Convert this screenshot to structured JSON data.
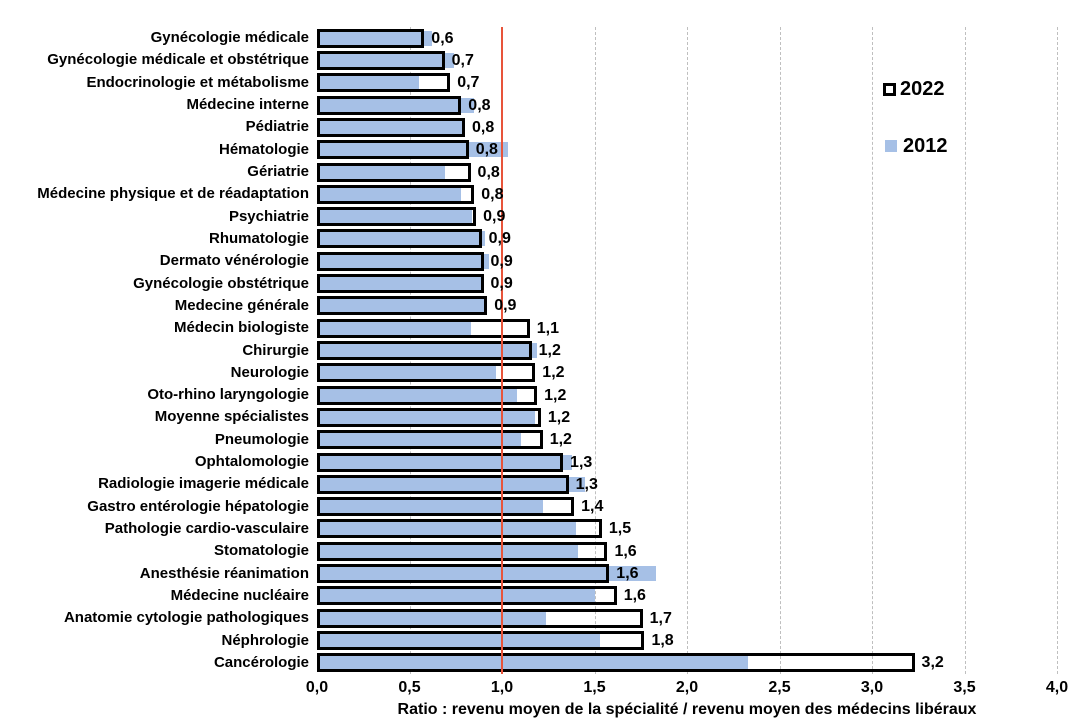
{
  "chart_data": {
    "type": "bar",
    "orientation": "horizontal",
    "title": "",
    "xlabel": "Ratio : revenu moyen de la spécialité / revenu moyen des médecins libéraux",
    "ylabel": "",
    "xlim": [
      0.0,
      4.0
    ],
    "xtick_labels": [
      "0,0",
      "0,5",
      "1,0",
      "1,5",
      "2,0",
      "2,5",
      "3,0",
      "3,5",
      "4,0"
    ],
    "xtick_values": [
      0,
      0.5,
      1.0,
      1.5,
      2.0,
      2.5,
      3.0,
      3.5,
      4.0
    ],
    "grid": "vertical-dashed",
    "legend_position": "right-top",
    "reference_line": {
      "value": 1.0,
      "color": "#e8543a"
    },
    "colors": {
      "bar_2012": "#a6c0e6",
      "bar_2022_fill": "#ffffff",
      "bar_2022_border": "#000000",
      "gridline": "#bfbfbf",
      "text": "#000000"
    },
    "legend": [
      {
        "name": "2022",
        "swatch": "white-square-black-outline"
      },
      {
        "name": "2012",
        "swatch": "light-blue-square"
      }
    ],
    "categories": [
      "Gynécologie médicale",
      "Gynécologie médicale et obstétrique",
      "Endocrinologie et métabolisme",
      "Médecine interne",
      "Pédiatrie",
      "Hématologie",
      "Gériatrie",
      "Médecine physique et de réadaptation",
      "Psychiatrie",
      "Rhumatologie",
      "Dermato vénérologie",
      "Gynécologie obstétrique",
      "Medecine générale",
      "Médecin biologiste",
      "Chirurgie",
      "Neurologie",
      "Oto-rhino laryngologie",
      "Moyenne spécialistes",
      "Pneumologie",
      "Ophtalomologie",
      "Radiologie imagerie médicale",
      "Gastro entérologie hépatologie",
      "Pathologie cardio-vasculaire",
      "Stomatologie",
      "Anesthésie réanimation",
      "Médecine nucléaire",
      "Anatomie cytologie pathologiques",
      "Néphrologie",
      "Cancérologie"
    ],
    "series": [
      {
        "name": "2022",
        "values": [
          0.6,
          0.7,
          0.7,
          0.8,
          0.8,
          0.8,
          0.8,
          0.8,
          0.9,
          0.9,
          0.9,
          0.9,
          0.9,
          1.1,
          1.2,
          1.2,
          1.2,
          1.2,
          1.2,
          1.3,
          1.3,
          1.4,
          1.5,
          1.6,
          1.6,
          1.6,
          1.7,
          1.8,
          3.2
        ],
        "data_labels": [
          "0,6",
          "0,7",
          "0,7",
          "0,8",
          "0,8",
          "0,8",
          "0,8",
          "0,8",
          "0,9",
          "0,9",
          "0,9",
          "0,9",
          "0,9",
          "1,1",
          "1,2",
          "1,2",
          "1,2",
          "1,2",
          "1,2",
          "1,3",
          "1,3",
          "1,4",
          "1,5",
          "1,6",
          "1,6",
          "1,6",
          "1,7",
          "1,8",
          "3,2"
        ],
        "bar_values": [
          0.58,
          0.69,
          0.72,
          0.78,
          0.8,
          0.82,
          0.83,
          0.85,
          0.86,
          0.89,
          0.9,
          0.9,
          0.92,
          1.15,
          1.16,
          1.18,
          1.19,
          1.21,
          1.22,
          1.33,
          1.36,
          1.39,
          1.54,
          1.57,
          1.58,
          1.62,
          1.76,
          1.77,
          3.23
        ]
      },
      {
        "name": "2012",
        "values": [
          0.6,
          0.7,
          0.55,
          0.85,
          0.8,
          1.0,
          0.7,
          0.8,
          0.85,
          0.9,
          0.95,
          0.9,
          0.9,
          0.85,
          1.2,
          1.0,
          1.1,
          1.2,
          1.1,
          1.4,
          1.45,
          1.2,
          1.4,
          1.4,
          1.8,
          1.5,
          1.25,
          1.55,
          2.3
        ],
        "bar_values": [
          0.62,
          0.74,
          0.55,
          0.85,
          0.79,
          1.03,
          0.69,
          0.78,
          0.84,
          0.91,
          0.93,
          0.89,
          0.91,
          0.83,
          1.19,
          0.97,
          1.08,
          1.18,
          1.1,
          1.38,
          1.45,
          1.22,
          1.4,
          1.41,
          1.83,
          1.5,
          1.24,
          1.53,
          2.33
        ]
      }
    ]
  }
}
